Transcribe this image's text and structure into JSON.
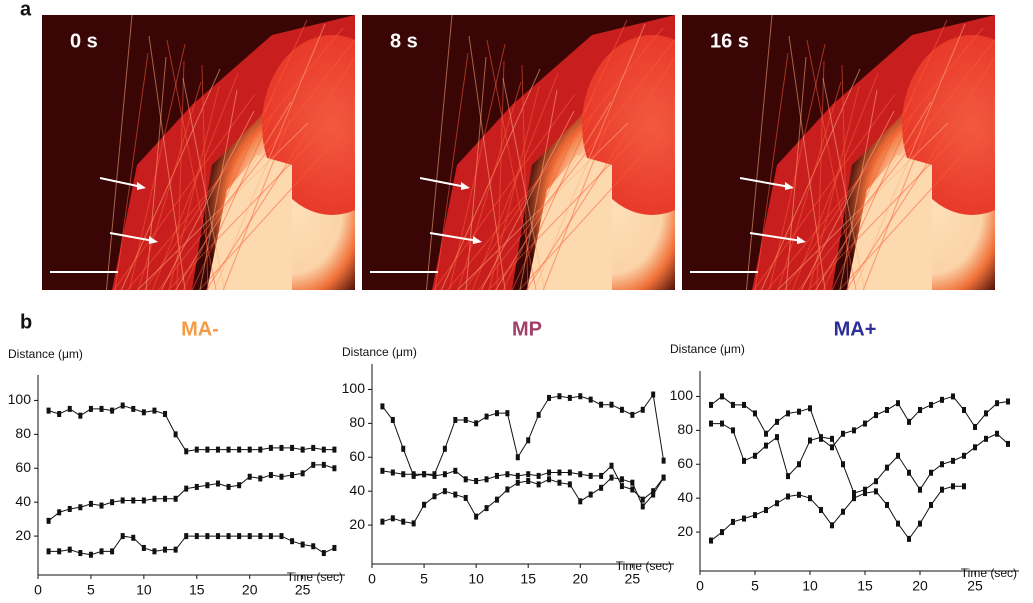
{
  "figure": {
    "panel_a_label": "a",
    "panel_b_label": "b",
    "images": [
      {
        "label": "0 s"
      },
      {
        "label": "8 s"
      },
      {
        "label": "16 s"
      }
    ]
  },
  "chart_data": [
    {
      "type": "line",
      "title": "MA-",
      "title_color": "#f59a45",
      "ylabel": "Distance (μm)",
      "xlabel": "Time (sec)",
      "xlim": [
        0,
        29
      ],
      "ylim": [
        0,
        115
      ],
      "xticks": [
        0,
        5,
        10,
        15,
        20,
        25
      ],
      "yticks": [
        20,
        40,
        60,
        80,
        100
      ],
      "x": [
        1,
        2,
        3,
        4,
        5,
        6,
        7,
        8,
        9,
        10,
        11,
        12,
        13,
        14,
        15,
        16,
        17,
        18,
        19,
        20,
        21,
        22,
        23,
        24,
        25,
        26,
        27,
        28
      ],
      "series": [
        {
          "color": "#111111",
          "values": [
            94,
            92,
            95,
            91,
            95,
            95,
            94,
            97,
            95,
            93,
            94,
            92,
            80,
            70,
            71,
            71,
            71,
            71,
            71,
            71,
            71,
            72,
            72,
            72,
            71,
            72,
            71,
            71
          ]
        },
        {
          "color": "#111111",
          "values": [
            29,
            34,
            36,
            37,
            39,
            38,
            40,
            41,
            41,
            41,
            42,
            42,
            42,
            48,
            49,
            50,
            51,
            49,
            50,
            55,
            54,
            56,
            55,
            56,
            57,
            62,
            62,
            60
          ]
        },
        {
          "color": "#111111",
          "values": [
            11,
            11,
            12,
            10,
            9,
            11,
            11,
            20,
            19,
            13,
            11,
            12,
            12,
            20,
            20,
            20,
            20,
            20,
            20,
            20,
            20,
            20,
            20,
            17,
            15,
            14,
            10,
            13
          ]
        }
      ]
    },
    {
      "type": "line",
      "title": "MP",
      "title_color": "#a0406a",
      "ylabel": "Distance (μm)",
      "xlabel": "Time (sec)",
      "xlim": [
        0,
        29
      ],
      "ylim": [
        0,
        115
      ],
      "xticks": [
        0,
        5,
        10,
        15,
        20,
        25
      ],
      "yticks": [
        20,
        40,
        60,
        80,
        100
      ],
      "x": [
        1,
        2,
        3,
        4,
        5,
        6,
        7,
        8,
        9,
        10,
        11,
        12,
        13,
        14,
        15,
        16,
        17,
        18,
        19,
        20,
        21,
        22,
        23,
        24,
        25,
        26,
        27,
        28
      ],
      "series": [
        {
          "color": "#111111",
          "values": [
            90,
            82,
            65,
            49,
            50,
            50,
            65,
            82,
            82,
            80,
            84,
            86,
            86,
            60,
            70,
            85,
            95,
            96,
            95,
            96,
            94,
            91,
            91,
            88,
            85,
            88,
            97,
            58
          ]
        },
        {
          "color": "#111111",
          "values": [
            52,
            51,
            50,
            50,
            50,
            49,
            50,
            52,
            47,
            46,
            47,
            49,
            50,
            49,
            50,
            49,
            51,
            51,
            51,
            50,
            49,
            49,
            55,
            43,
            41,
            35,
            40,
            48
          ]
        },
        {
          "color": "#111111",
          "values": [
            22,
            24,
            22,
            21,
            32,
            37,
            40,
            38,
            36,
            25,
            30,
            35,
            41,
            45,
            46,
            44,
            47,
            45,
            44,
            34,
            38,
            42,
            48,
            47,
            45,
            31,
            38,
            48
          ]
        }
      ]
    },
    {
      "type": "line",
      "title": "MA+",
      "title_color": "#2e2e9a",
      "ylabel": "Distance (μm)",
      "xlabel": "Time (sec)",
      "xlim": [
        0,
        29
      ],
      "ylim": [
        0,
        115
      ],
      "xticks": [
        0,
        5,
        10,
        15,
        20,
        25
      ],
      "yticks": [
        20,
        40,
        60,
        80,
        100
      ],
      "x": [
        1,
        2,
        3,
        4,
        5,
        6,
        7,
        8,
        9,
        10,
        11,
        12,
        13,
        14,
        15,
        16,
        17,
        18,
        19,
        20,
        21,
        22,
        23,
        24,
        25,
        26,
        27,
        28
      ],
      "series": [
        {
          "color": "#111111",
          "values": [
            95,
            100,
            95,
            95,
            90,
            78,
            85,
            90,
            91,
            93,
            75,
            70,
            78,
            80,
            84,
            89,
            92,
            96,
            85,
            92,
            95,
            98,
            100,
            92,
            82,
            90,
            96,
            97
          ]
        },
        {
          "color": "#111111",
          "values": [
            84,
            84,
            80,
            62,
            65,
            71,
            76,
            53,
            60,
            74,
            76,
            75,
            60,
            43,
            45,
            50,
            58,
            65,
            55,
            45,
            55,
            60,
            62,
            65,
            70,
            75,
            78,
            72
          ]
        },
        {
          "color": "#111111",
          "values": [
            15,
            20,
            26,
            28,
            30,
            33,
            37,
            41,
            42,
            40,
            33,
            24,
            32,
            40,
            43,
            44,
            36,
            25,
            16,
            25,
            36,
            45,
            47,
            47,
            null,
            null,
            null,
            null
          ]
        }
      ]
    }
  ]
}
